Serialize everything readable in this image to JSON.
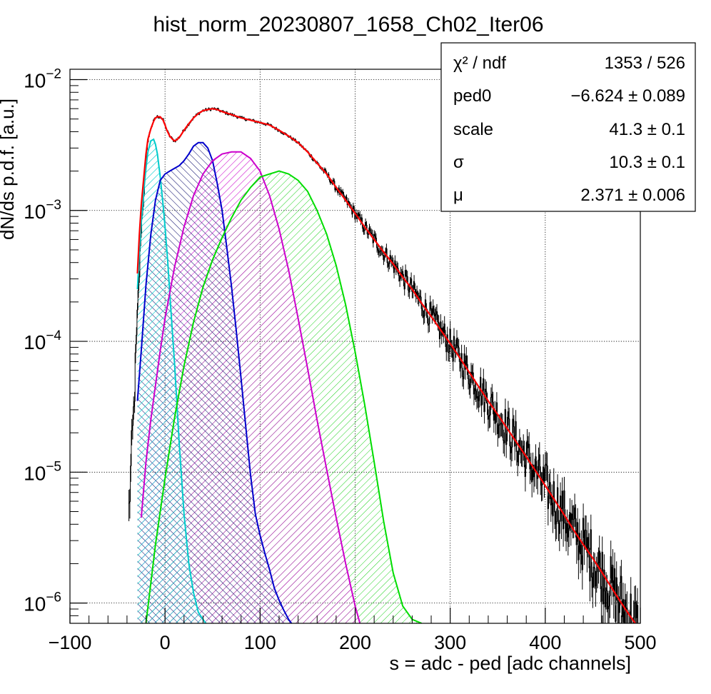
{
  "chart_data": {
    "type": "line",
    "title": "hist_norm_20230807_1658_Ch02_Iter06",
    "xlabel": "s = adc - ped [adc channels]",
    "ylabel": "dN/ds p.d.f. [a.u.]",
    "xlim": [
      -100,
      500
    ],
    "ylim": [
      7e-07,
      0.012
    ],
    "yscale": "log",
    "grid": true,
    "x_ticks": [
      {
        "value": -100,
        "label": "−100"
      },
      {
        "value": 0,
        "label": "0"
      },
      {
        "value": 100,
        "label": "100"
      },
      {
        "value": 200,
        "label": "200"
      },
      {
        "value": 300,
        "label": "300"
      },
      {
        "value": 400,
        "label": "400"
      },
      {
        "value": 500,
        "label": "500"
      }
    ],
    "y_ticks": [
      {
        "value": 1e-06,
        "base": "10",
        "exp": "−6"
      },
      {
        "value": 1e-05,
        "base": "10",
        "exp": "−5"
      },
      {
        "value": 0.0001,
        "base": "10",
        "exp": "−4"
      },
      {
        "value": 0.001,
        "base": "10",
        "exp": "−3"
      },
      {
        "value": 0.01,
        "base": "10",
        "exp": "−2"
      }
    ],
    "stats_box": {
      "position": "top-right",
      "rows": [
        {
          "label": "χ² / ndf",
          "value": "1353 / 526"
        },
        {
          "label": "ped0",
          "value": "−6.624 ± 0.089"
        },
        {
          "label": "scale",
          "value": "41.3 ± 0.1"
        },
        {
          "label": "σ",
          "value": "10.3 ± 0.1"
        },
        {
          "label": "μ",
          "value": "2.371 ± 0.006"
        }
      ]
    },
    "series": [
      {
        "kind": "histogram",
        "color": "#000000",
        "x": [
          -38,
          -33,
          -30,
          -27,
          -25,
          -22,
          -20,
          -18,
          -15,
          -12,
          -10,
          -8,
          -5,
          -2,
          0,
          2,
          5,
          8,
          10,
          13,
          16,
          19,
          22,
          25,
          30,
          35,
          40,
          45,
          50,
          55,
          60,
          70,
          80,
          90,
          100,
          110,
          120,
          130,
          140,
          150,
          160,
          170,
          180,
          190,
          200,
          210,
          220,
          230,
          240,
          250,
          260,
          270,
          280,
          290,
          300,
          310,
          320,
          330,
          340,
          350,
          360,
          370,
          380,
          390,
          400,
          410,
          420,
          430,
          440,
          450,
          460,
          470,
          480,
          490,
          498
        ],
        "values": [
          5e-06,
          2.8e-05,
          0.0001,
          0.00033,
          0.00072,
          0.0014,
          0.0024,
          0.0034,
          0.0042,
          0.0048,
          0.0051,
          0.0052,
          0.0052,
          0.0049,
          0.0045,
          0.0041,
          0.0037,
          0.0035,
          0.0034,
          0.0035,
          0.0037,
          0.004,
          0.0043,
          0.0046,
          0.0051,
          0.0055,
          0.0058,
          0.0059,
          0.006,
          0.0059,
          0.0057,
          0.0054,
          0.0051,
          0.0049,
          0.0047,
          0.0045,
          0.0041,
          0.0037,
          0.0033,
          0.0028,
          0.0023,
          0.0019,
          0.0015,
          0.0012,
          0.00095,
          0.00075,
          0.0006,
          0.00048,
          0.00039,
          0.00031,
          0.00025,
          0.000195,
          0.000155,
          0.000122,
          9.6e-05,
          7.5e-05,
          5.8e-05,
          4.5e-05,
          3.5e-05,
          2.75e-05,
          2.15e-05,
          1.68e-05,
          1.31e-05,
          1.02e-05,
          7.9e-06,
          6.1e-06,
          4.7e-06,
          3.6e-06,
          2.8e-06,
          2.2e-06,
          1.7e-06,
          1.3e-06,
          1e-06,
          7.8e-07,
          6.2e-07
        ]
      },
      {
        "kind": "fit",
        "color": "#ff0000",
        "x": [
          -29,
          -27,
          -25,
          -22,
          -20,
          -18,
          -15,
          -12,
          -10,
          -8,
          -5,
          -2,
          0,
          2,
          5,
          8,
          10,
          13,
          16,
          19,
          22,
          25,
          30,
          35,
          40,
          45,
          50,
          55,
          60,
          70,
          80,
          90,
          100,
          110,
          120,
          130,
          140,
          150,
          160,
          170,
          180,
          190,
          200,
          210,
          220,
          230,
          240,
          250,
          260,
          270,
          280,
          290,
          300,
          310,
          320,
          330,
          340,
          350,
          360,
          370,
          380,
          390,
          400,
          410,
          420,
          430,
          440,
          450,
          460,
          470,
          480,
          490,
          500
        ],
        "values": [
          0.00033,
          0.00065,
          0.0011,
          0.0019,
          0.0027,
          0.0035,
          0.0042,
          0.0048,
          0.0051,
          0.0052,
          0.0052,
          0.0049,
          0.0045,
          0.0041,
          0.0037,
          0.0035,
          0.0034,
          0.0035,
          0.0037,
          0.004,
          0.0043,
          0.0046,
          0.0051,
          0.0055,
          0.0058,
          0.0059,
          0.006,
          0.0059,
          0.0057,
          0.0054,
          0.0051,
          0.0049,
          0.0047,
          0.0045,
          0.0041,
          0.0037,
          0.0033,
          0.0028,
          0.0023,
          0.0019,
          0.0015,
          0.0012,
          0.00095,
          0.00075,
          0.0006,
          0.00048,
          0.00039,
          0.00031,
          0.00025,
          0.000195,
          0.000155,
          0.000122,
          9.6e-05,
          7.5e-05,
          5.8e-05,
          4.5e-05,
          3.5e-05,
          2.75e-05,
          2.15e-05,
          1.68e-05,
          1.31e-05,
          1.02e-05,
          7.9e-06,
          6.1e-06,
          4.7e-06,
          3.6e-06,
          2.8e-06,
          2.2e-06,
          1.7e-06,
          1.3e-06,
          1e-06,
          7.8e-07,
          6.2e-07
        ]
      },
      {
        "kind": "component",
        "color": "#00cccc",
        "hatch": "cyan-hatch",
        "x": [
          -29,
          -27,
          -25,
          -22,
          -20,
          -18,
          -15,
          -12,
          -10,
          -8,
          -5,
          -2,
          0,
          3,
          6,
          10,
          15,
          20,
          25,
          30,
          35,
          40,
          43
        ],
        "values": [
          0.00025,
          0.00047,
          0.0008,
          0.0015,
          0.0021,
          0.0028,
          0.0034,
          0.0035,
          0.0032,
          0.0027,
          0.0018,
          0.0011,
          0.00075,
          0.00039,
          0.00018,
          6.8e-05,
          1.65e-05,
          4.8e-06,
          2e-06,
          1.2e-06,
          8.5e-07,
          7.5e-07,
          7e-07
        ]
      },
      {
        "kind": "component",
        "color": "#0000cc",
        "hatch": "navy-hatch",
        "x": [
          -29,
          -25,
          -20,
          -15,
          -10,
          -5,
          0,
          5,
          10,
          15,
          20,
          25,
          30,
          35,
          40,
          45,
          50,
          55,
          60,
          65,
          70,
          75,
          80,
          85,
          90,
          95,
          100,
          105,
          110,
          115,
          120,
          125,
          130,
          133
        ],
        "values": [
          3.5e-05,
          8.5e-05,
          0.00027,
          0.00065,
          0.0012,
          0.0017,
          0.0019,
          0.002,
          0.0021,
          0.0022,
          0.0024,
          0.0027,
          0.0031,
          0.0033,
          0.0033,
          0.003,
          0.0024,
          0.0016,
          0.001,
          0.00052,
          0.00026,
          0.00012,
          5.2e-05,
          2.2e-05,
          9.5e-06,
          4.8e-06,
          3.3e-06,
          2.4e-06,
          1.8e-06,
          1.3e-06,
          1.05e-06,
          8.8e-07,
          7.5e-07,
          7e-07
        ]
      },
      {
        "kind": "component",
        "color": "#cc00cc",
        "hatch": "magenta-hatch",
        "x": [
          -25,
          -20,
          -15,
          -10,
          -5,
          0,
          10,
          20,
          30,
          40,
          50,
          60,
          70,
          80,
          90,
          100,
          110,
          120,
          130,
          140,
          150,
          160,
          170,
          180,
          190,
          200,
          205
        ],
        "values": [
          4.5e-06,
          1.2e-05,
          2.5e-05,
          4.6e-05,
          8.5e-05,
          0.00015,
          0.00037,
          0.00075,
          0.0013,
          0.0019,
          0.0024,
          0.0027,
          0.0028,
          0.0028,
          0.0025,
          0.002,
          0.0013,
          0.00072,
          0.00035,
          0.00015,
          6.2e-05,
          2.5e-05,
          1.05e-05,
          4.5e-06,
          2e-06,
          9.5e-07,
          7e-07
        ]
      },
      {
        "kind": "component",
        "color": "#00dd00",
        "hatch": "green-hatch",
        "x": [
          -20,
          -10,
          0,
          10,
          20,
          30,
          40,
          50,
          60,
          70,
          80,
          90,
          100,
          110,
          120,
          130,
          140,
          150,
          160,
          170,
          180,
          190,
          200,
          210,
          220,
          230,
          240,
          250,
          260,
          270
        ],
        "values": [
          7e-07,
          2.8e-06,
          9e-06,
          2.6e-05,
          6.5e-05,
          0.00014,
          0.00026,
          0.00042,
          0.00062,
          0.00088,
          0.0012,
          0.0015,
          0.0018,
          0.0019,
          0.002,
          0.0019,
          0.0017,
          0.0014,
          0.001,
          0.00066,
          0.00038,
          0.00019,
          8.3e-05,
          3.3e-05,
          1.2e-05,
          4.2e-06,
          1.7e-06,
          9.5e-07,
          7.5e-07,
          7e-07
        ]
      }
    ]
  }
}
